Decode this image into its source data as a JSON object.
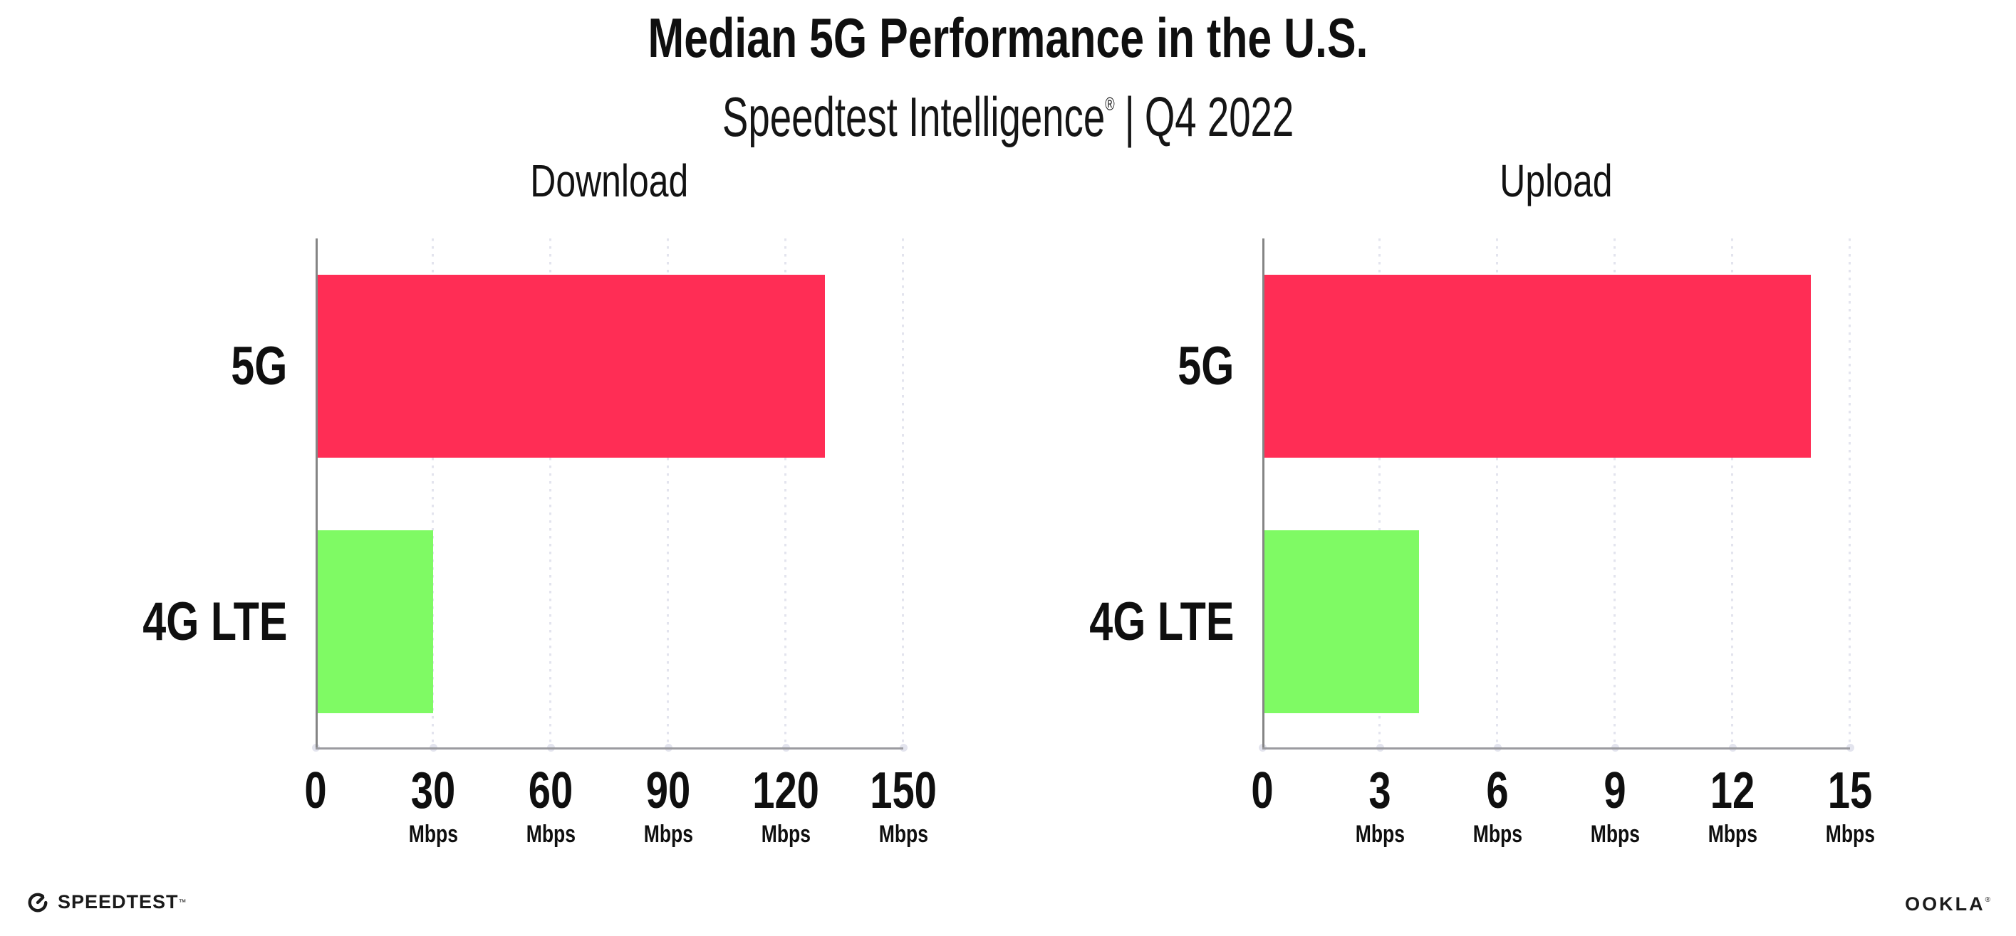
{
  "header": {
    "title": "Median 5G Performance in the U.S.",
    "subtitle_brand": "Speedtest Intelligence",
    "subtitle_reg": "®",
    "subtitle_divider": "|",
    "subtitle_period": "Q4 2022"
  },
  "colors": {
    "bar_5g": "#FF2D55",
    "bar_4g_lte": "#7FFA64",
    "gridline": "#E3E4EE",
    "x_axis": "#9B9BA0",
    "y_axis": "#858585",
    "text": "#0F0F0F"
  },
  "chart_data": [
    {
      "type": "bar",
      "orientation": "horizontal",
      "title": "Download",
      "categories": [
        "5G",
        "4G LTE"
      ],
      "values": [
        130,
        30
      ],
      "unit": "Mbps",
      "xlabel": "",
      "ylabel": "",
      "xlim": [
        0,
        150
      ],
      "xticks": [
        0,
        30,
        60,
        90,
        120,
        150
      ],
      "grid": "vertical dotted",
      "legend": "none",
      "bar_colors": [
        "#FF2D55",
        "#7FFA64"
      ]
    },
    {
      "type": "bar",
      "orientation": "horizontal",
      "title": "Upload",
      "categories": [
        "5G",
        "4G LTE"
      ],
      "values": [
        14,
        4
      ],
      "unit": "Mbps",
      "xlabel": "",
      "ylabel": "",
      "xlim": [
        0,
        15
      ],
      "xticks": [
        0,
        3,
        6,
        9,
        12,
        15
      ],
      "grid": "vertical dotted",
      "legend": "none",
      "bar_colors": [
        "#FF2D55",
        "#7FFA64"
      ]
    }
  ],
  "footer": {
    "speedtest_wordmark": "SPEEDTEST",
    "speedtest_mark": "™",
    "ookla_wordmark": "OOKLA",
    "ookla_mark": "®"
  }
}
